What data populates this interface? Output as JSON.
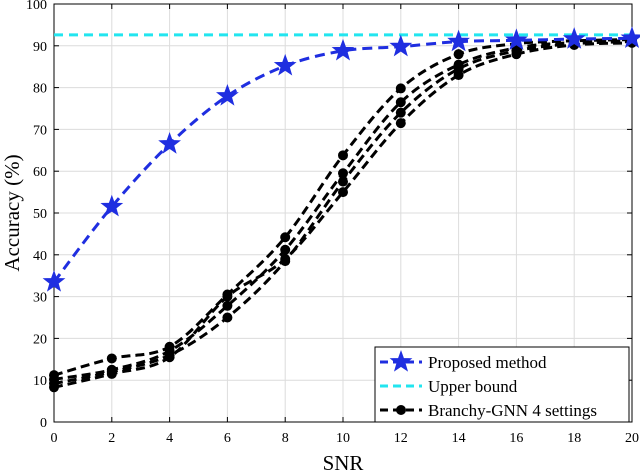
{
  "chart_data": {
    "type": "line",
    "title": "",
    "xlabel": "SNR",
    "ylabel": "Accuracy (%)",
    "xlim": [
      0,
      20
    ],
    "ylim": [
      0,
      100
    ],
    "x_ticks": [
      0,
      2,
      4,
      6,
      8,
      10,
      12,
      14,
      16,
      18,
      20
    ],
    "y_ticks": [
      0,
      10,
      20,
      30,
      40,
      50,
      60,
      70,
      80,
      90,
      100
    ],
    "grid": true,
    "legend_position": "bottom-right",
    "x": [
      0,
      2,
      4,
      6,
      8,
      10,
      12,
      14,
      16,
      18,
      20
    ],
    "series": [
      {
        "name": "Proposed method",
        "color": "#1f2ee0",
        "style": "dashed",
        "marker": "star",
        "in_legend": true,
        "values": [
          33.5,
          51.5,
          66.5,
          78,
          85.2,
          88.8,
          89.8,
          91,
          91.3,
          91.6,
          91.8
        ]
      },
      {
        "name": "Upper bound",
        "color": "#22e5ef",
        "style": "dashed",
        "marker": "none",
        "in_legend": true,
        "values": [
          92.6,
          92.6,
          92.6,
          92.6,
          92.6,
          92.6,
          92.6,
          92.6,
          92.6,
          92.6,
          92.6
        ]
      },
      {
        "name": "Branchy-GNN 4 settings",
        "color": "#000000",
        "style": "dashed",
        "marker": "circle",
        "in_legend": true,
        "values": [
          11.2,
          15.2,
          18.0,
          30.5,
          44.2,
          63.8,
          79.8,
          88.0,
          90.5,
          91.2,
          91.5
        ]
      },
      {
        "name": "",
        "color": "#000000",
        "style": "dashed",
        "marker": "circle",
        "in_legend": false,
        "values": [
          10.2,
          12.5,
          17.0,
          27.8,
          41.2,
          59.5,
          76.5,
          85.5,
          89.5,
          90.8,
          91.2
        ]
      },
      {
        "name": "",
        "color": "#000000",
        "style": "dashed",
        "marker": "circle",
        "in_legend": false,
        "values": [
          9.2,
          12.0,
          16.0,
          25.0,
          38.5,
          57.5,
          74.0,
          84.5,
          88.8,
          90.5,
          91.0
        ]
      },
      {
        "name": "",
        "color": "#000000",
        "style": "dashed",
        "marker": "circle",
        "in_legend": false,
        "values": [
          8.3,
          11.5,
          15.5,
          30.0,
          39.0,
          55.0,
          71.5,
          83.0,
          88.0,
          90.2,
          90.7
        ]
      }
    ]
  }
}
